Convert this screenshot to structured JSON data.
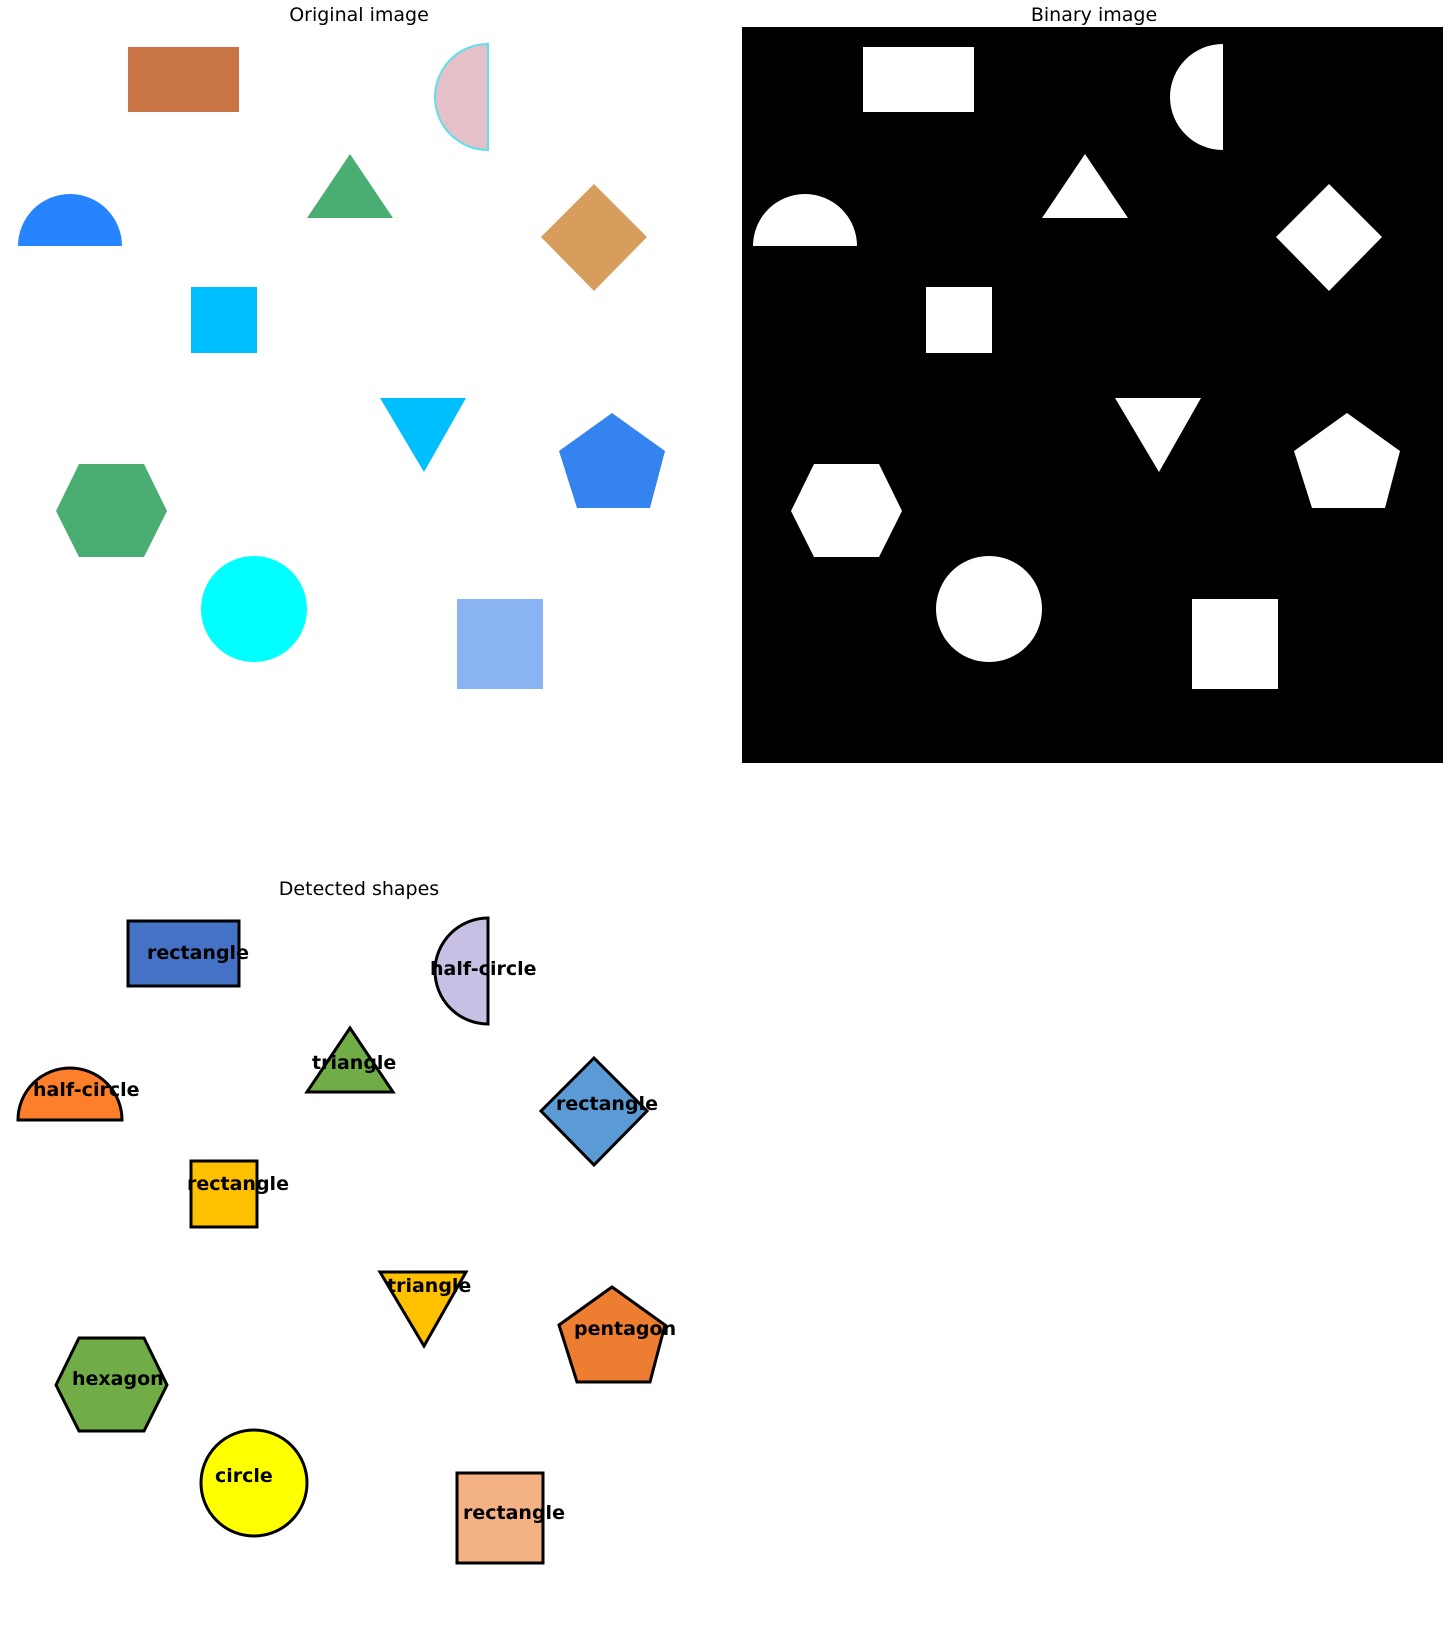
{
  "panels": {
    "original": {
      "title": "Original image"
    },
    "binary": {
      "title": "Binary image"
    },
    "detected": {
      "title": "Detected shapes"
    }
  },
  "labels": {
    "rect_top": "rectangle",
    "half_circle_right": "half-circle",
    "triangle_up": "triangle",
    "half_circle_left": "half-circle",
    "diamond": "rectangle",
    "small_square": "rectangle",
    "triangle_down": "triangle",
    "pentagon": "pentagon",
    "hexagon": "hexagon",
    "circle": "circle",
    "square_bottom": "rectangle"
  },
  "colors": {
    "original": {
      "rect_top": "#c87444",
      "half_circle_right": "#e6c0c9",
      "half_circle_right_edge": "#5ee0e8",
      "half_circle_left": "#2684ff",
      "triangle_up": "#4aae72",
      "diamond": "#d69d5c",
      "small_square": "#00bfff",
      "triangle_down": "#00bfff",
      "pentagon": "#3583ee",
      "hexagon": "#4aae72",
      "circle": "#00ffff",
      "square_bottom": "#8ab3f4"
    },
    "detected": {
      "rect_top": "#4472c4",
      "half_circle_right": "#c8c0e4",
      "half_circle_left": "#fd7f2c",
      "triangle_up": "#70ad47",
      "diamond": "#5b9bd5",
      "small_square": "#ffc000",
      "triangle_down": "#ffc000",
      "pentagon": "#ed7d31",
      "hexagon": "#70ad47",
      "circle": "#ffff00",
      "square_bottom": "#f4b183"
    },
    "binary_bg": "#000000",
    "binary_fg": "#ffffff"
  }
}
